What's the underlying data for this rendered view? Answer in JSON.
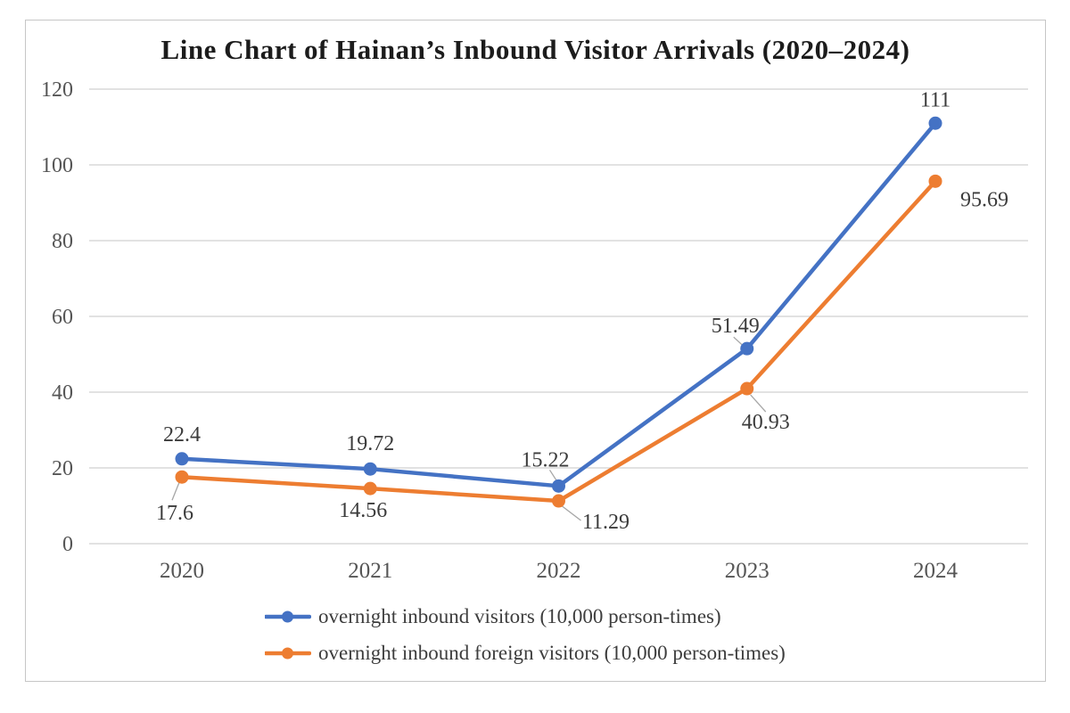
{
  "chart": {
    "title": "Line Chart of Hainan’s Inbound Visitor Arrivals (2020–2024)"
  },
  "chart_data": {
    "type": "line",
    "title": "Line Chart of Hainan’s Inbound Visitor Arrivals (2020–2024)",
    "categories": [
      "2020",
      "2021",
      "2022",
      "2023",
      "2024"
    ],
    "y_ticks": [
      "0",
      "20",
      "40",
      "60",
      "80",
      "100",
      "120"
    ],
    "ylim": [
      0,
      120
    ],
    "grid": true,
    "legend_position": "bottom",
    "series": [
      {
        "name": "overnight inbound visitors (10,000 person-times)",
        "color": "#4472C4",
        "values": [
          22.4,
          19.72,
          15.22,
          51.49,
          111
        ],
        "labels": [
          "22.4",
          "19.72",
          "15.22",
          "51.49",
          "111"
        ]
      },
      {
        "name": "overnight inbound foreign visitors (10,000 person-times)",
        "color": "#ED7D31",
        "values": [
          17.6,
          14.56,
          11.29,
          40.93,
          95.69
        ],
        "labels": [
          "17.6",
          "14.56",
          "11.29",
          "40.93",
          "95.69"
        ]
      }
    ],
    "colors": {
      "grid": "#d9d9d9",
      "tick_text": "#555555",
      "data_label_text": "#3b3b3b",
      "leader_line": "#a6a6a6",
      "frame_border": "#c6c6c6"
    }
  }
}
